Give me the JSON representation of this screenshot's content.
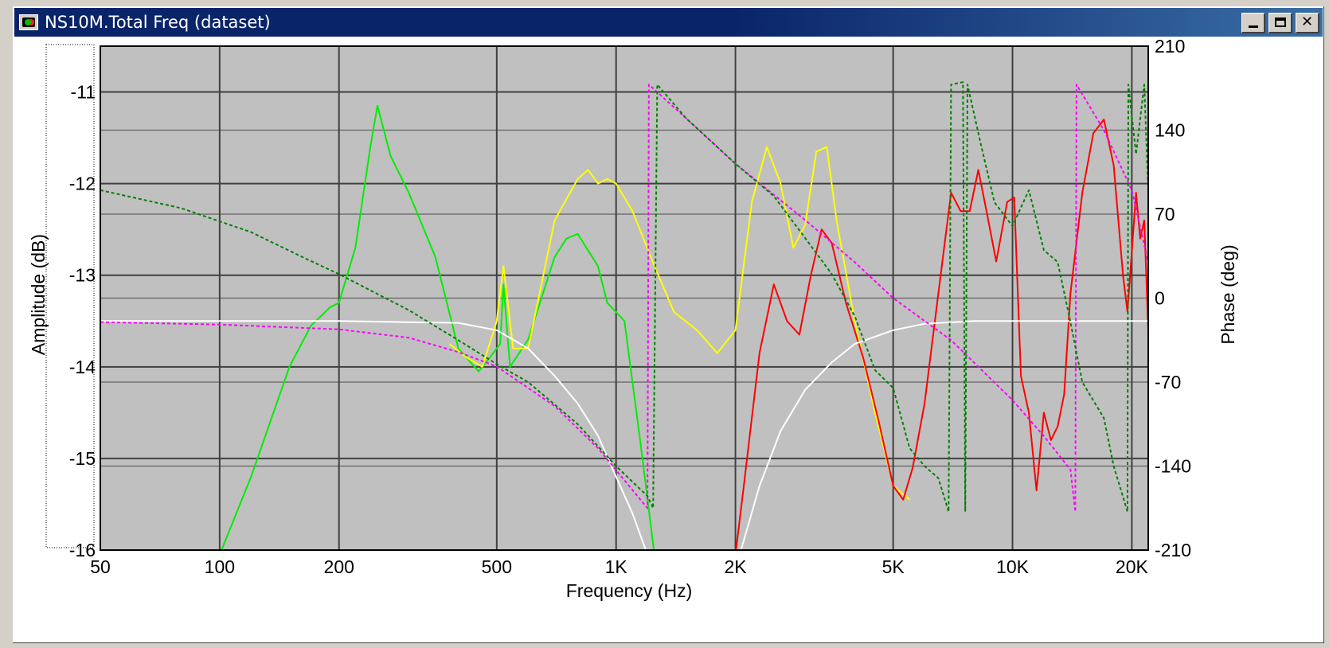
{
  "window": {
    "title": "NS10M.Total Freq (dataset)"
  },
  "chart_data": {
    "type": "line",
    "xscale": "log",
    "xlim": [
      50,
      22000
    ],
    "ylim": [
      -16,
      -10.5
    ],
    "y2lim": [
      -210,
      210
    ],
    "xlabel": "Frequency (Hz)",
    "ylabel": "Amplitude (dB)",
    "y2label": "Phase (deg)",
    "x_ticks": [
      50,
      100,
      200,
      500,
      1000,
      2000,
      5000,
      10000,
      20000
    ],
    "x_tick_labels": [
      "50",
      "100",
      "200",
      "500",
      "1K",
      "2K",
      "5K",
      "10K",
      "20K"
    ],
    "y_ticks": [
      -11,
      -12,
      -13,
      -14,
      -15,
      -16
    ],
    "y_tick_labels": [
      "-11",
      "-12",
      "-13",
      "-14",
      "-15",
      "-16"
    ],
    "y2_ticks": [
      210,
      140,
      70,
      0,
      -70,
      -140,
      -210
    ],
    "y2_tick_labels": [
      "210",
      "140",
      "70",
      "0",
      "-70",
      "-140",
      "-210"
    ],
    "grid": true,
    "background": "#c0c0c0",
    "series": [
      {
        "color": "#00ee00",
        "style": "solid",
        "axis": "left",
        "points": [
          [
            100,
            -16.05
          ],
          [
            120,
            -15.2
          ],
          [
            150,
            -14.0
          ],
          [
            170,
            -13.55
          ],
          [
            190,
            -13.35
          ],
          [
            200,
            -13.3
          ],
          [
            220,
            -12.7
          ],
          [
            240,
            -11.6
          ],
          [
            250,
            -11.15
          ],
          [
            270,
            -11.7
          ],
          [
            300,
            -12.1
          ],
          [
            350,
            -12.8
          ],
          [
            400,
            -13.8
          ],
          [
            450,
            -14.05
          ],
          [
            480,
            -13.9
          ],
          [
            510,
            -13.75
          ],
          [
            520,
            -13.1
          ],
          [
            540,
            -14.0
          ],
          [
            600,
            -13.7
          ],
          [
            700,
            -12.8
          ],
          [
            750,
            -12.6
          ],
          [
            800,
            -12.55
          ],
          [
            900,
            -12.9
          ],
          [
            950,
            -13.3
          ],
          [
            1050,
            -13.5
          ],
          [
            1150,
            -14.8
          ],
          [
            1250,
            -16.05
          ]
        ]
      },
      {
        "color": "#ffff00",
        "style": "solid",
        "axis": "left",
        "points": [
          [
            380,
            -13.75
          ],
          [
            420,
            -13.9
          ],
          [
            460,
            -14.0
          ],
          [
            500,
            -13.5
          ],
          [
            520,
            -12.9
          ],
          [
            550,
            -13.8
          ],
          [
            600,
            -13.8
          ],
          [
            700,
            -12.4
          ],
          [
            800,
            -11.95
          ],
          [
            850,
            -11.85
          ],
          [
            900,
            -12.0
          ],
          [
            950,
            -11.95
          ],
          [
            1000,
            -12.0
          ],
          [
            1100,
            -12.3
          ],
          [
            1250,
            -12.9
          ],
          [
            1400,
            -13.4
          ],
          [
            1600,
            -13.6
          ],
          [
            1800,
            -13.85
          ],
          [
            2000,
            -13.6
          ],
          [
            2200,
            -12.2
          ],
          [
            2400,
            -11.6
          ],
          [
            2600,
            -12.0
          ],
          [
            2800,
            -12.7
          ],
          [
            3000,
            -12.45
          ],
          [
            3200,
            -11.65
          ],
          [
            3400,
            -11.6
          ],
          [
            3600,
            -12.4
          ],
          [
            4000,
            -13.5
          ],
          [
            4500,
            -14.5
          ],
          [
            5000,
            -15.3
          ],
          [
            5500,
            -15.45
          ]
        ]
      },
      {
        "color": "#ff0000",
        "style": "solid",
        "axis": "left",
        "points": [
          [
            2000,
            -16.05
          ],
          [
            2100,
            -15.3
          ],
          [
            2300,
            -13.85
          ],
          [
            2500,
            -13.1
          ],
          [
            2700,
            -13.5
          ],
          [
            2900,
            -13.65
          ],
          [
            3100,
            -13.0
          ],
          [
            3300,
            -12.5
          ],
          [
            3500,
            -12.65
          ],
          [
            3800,
            -13.3
          ],
          [
            4200,
            -13.9
          ],
          [
            4600,
            -14.6
          ],
          [
            5000,
            -15.3
          ],
          [
            5300,
            -15.45
          ],
          [
            5600,
            -15.1
          ],
          [
            6000,
            -14.4
          ],
          [
            6500,
            -13.2
          ],
          [
            7000,
            -12.1
          ],
          [
            7400,
            -12.3
          ],
          [
            7800,
            -12.3
          ],
          [
            8200,
            -11.85
          ],
          [
            8600,
            -12.3
          ],
          [
            9100,
            -12.85
          ],
          [
            9700,
            -12.2
          ],
          [
            10100,
            -12.15
          ],
          [
            10500,
            -14.1
          ],
          [
            11000,
            -14.5
          ],
          [
            11500,
            -15.35
          ],
          [
            12000,
            -14.5
          ],
          [
            12500,
            -14.8
          ],
          [
            13000,
            -14.65
          ],
          [
            13500,
            -14.3
          ],
          [
            14000,
            -13.2
          ],
          [
            15000,
            -12.1
          ],
          [
            16000,
            -11.45
          ],
          [
            17000,
            -11.3
          ],
          [
            18000,
            -11.8
          ],
          [
            19000,
            -13.0
          ],
          [
            19500,
            -13.4
          ],
          [
            20500,
            -12.1
          ],
          [
            21000,
            -12.6
          ],
          [
            21500,
            -12.4
          ],
          [
            22000,
            -13.6
          ]
        ]
      },
      {
        "color": "#ffffff",
        "style": "solid",
        "axis": "left",
        "points": [
          [
            50,
            -13.5
          ],
          [
            200,
            -13.5
          ],
          [
            400,
            -13.52
          ],
          [
            500,
            -13.6
          ],
          [
            600,
            -13.8
          ],
          [
            700,
            -14.1
          ],
          [
            800,
            -14.4
          ],
          [
            900,
            -14.75
          ],
          [
            1000,
            -15.2
          ],
          [
            1100,
            -15.6
          ],
          [
            1200,
            -16.05
          ]
        ]
      },
      {
        "color": "#ffffff",
        "style": "solid",
        "axis": "left",
        "points": [
          [
            2050,
            -16.05
          ],
          [
            2300,
            -15.3
          ],
          [
            2600,
            -14.7
          ],
          [
            3000,
            -14.25
          ],
          [
            3500,
            -13.95
          ],
          [
            4000,
            -13.75
          ],
          [
            5000,
            -13.6
          ],
          [
            6000,
            -13.53
          ],
          [
            8000,
            -13.5
          ],
          [
            22000,
            -13.5
          ]
        ]
      },
      {
        "color": "#ff00ff",
        "style": "dashed",
        "axis": "right",
        "points": [
          [
            50,
            -20
          ],
          [
            100,
            -22
          ],
          [
            200,
            -26
          ],
          [
            300,
            -33
          ],
          [
            400,
            -45
          ],
          [
            500,
            -57
          ],
          [
            700,
            -90
          ],
          [
            900,
            -125
          ],
          [
            1100,
            -160
          ],
          [
            1200,
            -175
          ],
          [
            1210,
            178
          ],
          [
            1500,
            150
          ],
          [
            2000,
            112
          ],
          [
            3000,
            65
          ],
          [
            4000,
            30
          ],
          [
            5000,
            0
          ],
          [
            7000,
            -35
          ],
          [
            10000,
            -85
          ],
          [
            12000,
            -115
          ],
          [
            14000,
            -143
          ],
          [
            14400,
            -178
          ],
          [
            14500,
            178
          ],
          [
            17000,
            140
          ],
          [
            20000,
            90
          ],
          [
            22000,
            30
          ]
        ]
      },
      {
        "color": "#008000",
        "style": "dashed",
        "axis": "right",
        "points": [
          [
            50,
            90
          ],
          [
            80,
            75
          ],
          [
            120,
            55
          ],
          [
            160,
            35
          ],
          [
            200,
            20
          ],
          [
            300,
            -10
          ],
          [
            400,
            -35
          ],
          [
            500,
            -55
          ],
          [
            600,
            -70
          ],
          [
            800,
            -105
          ],
          [
            1000,
            -140
          ],
          [
            1200,
            -165
          ],
          [
            1240,
            -175
          ],
          [
            1270,
            178
          ],
          [
            1500,
            150
          ],
          [
            2000,
            112
          ],
          [
            2500,
            85
          ],
          [
            3000,
            50
          ],
          [
            3500,
            20
          ],
          [
            4000,
            -15
          ],
          [
            4500,
            -60
          ],
          [
            5000,
            -75
          ],
          [
            5500,
            -125
          ],
          [
            6000,
            -140
          ],
          [
            6500,
            -150
          ],
          [
            6900,
            -178
          ],
          [
            7000,
            178
          ],
          [
            7500,
            180
          ],
          [
            7600,
            -178
          ],
          [
            7700,
            178
          ],
          [
            8300,
            130
          ],
          [
            9000,
            80
          ],
          [
            10000,
            60
          ],
          [
            11000,
            90
          ],
          [
            12000,
            40
          ],
          [
            13000,
            30
          ],
          [
            14000,
            -20
          ],
          [
            15000,
            -70
          ],
          [
            17000,
            -100
          ],
          [
            18000,
            -140
          ],
          [
            19500,
            -178
          ],
          [
            19600,
            178
          ],
          [
            20500,
            120
          ],
          [
            21500,
            178
          ],
          [
            22000,
            90
          ]
        ]
      }
    ]
  }
}
